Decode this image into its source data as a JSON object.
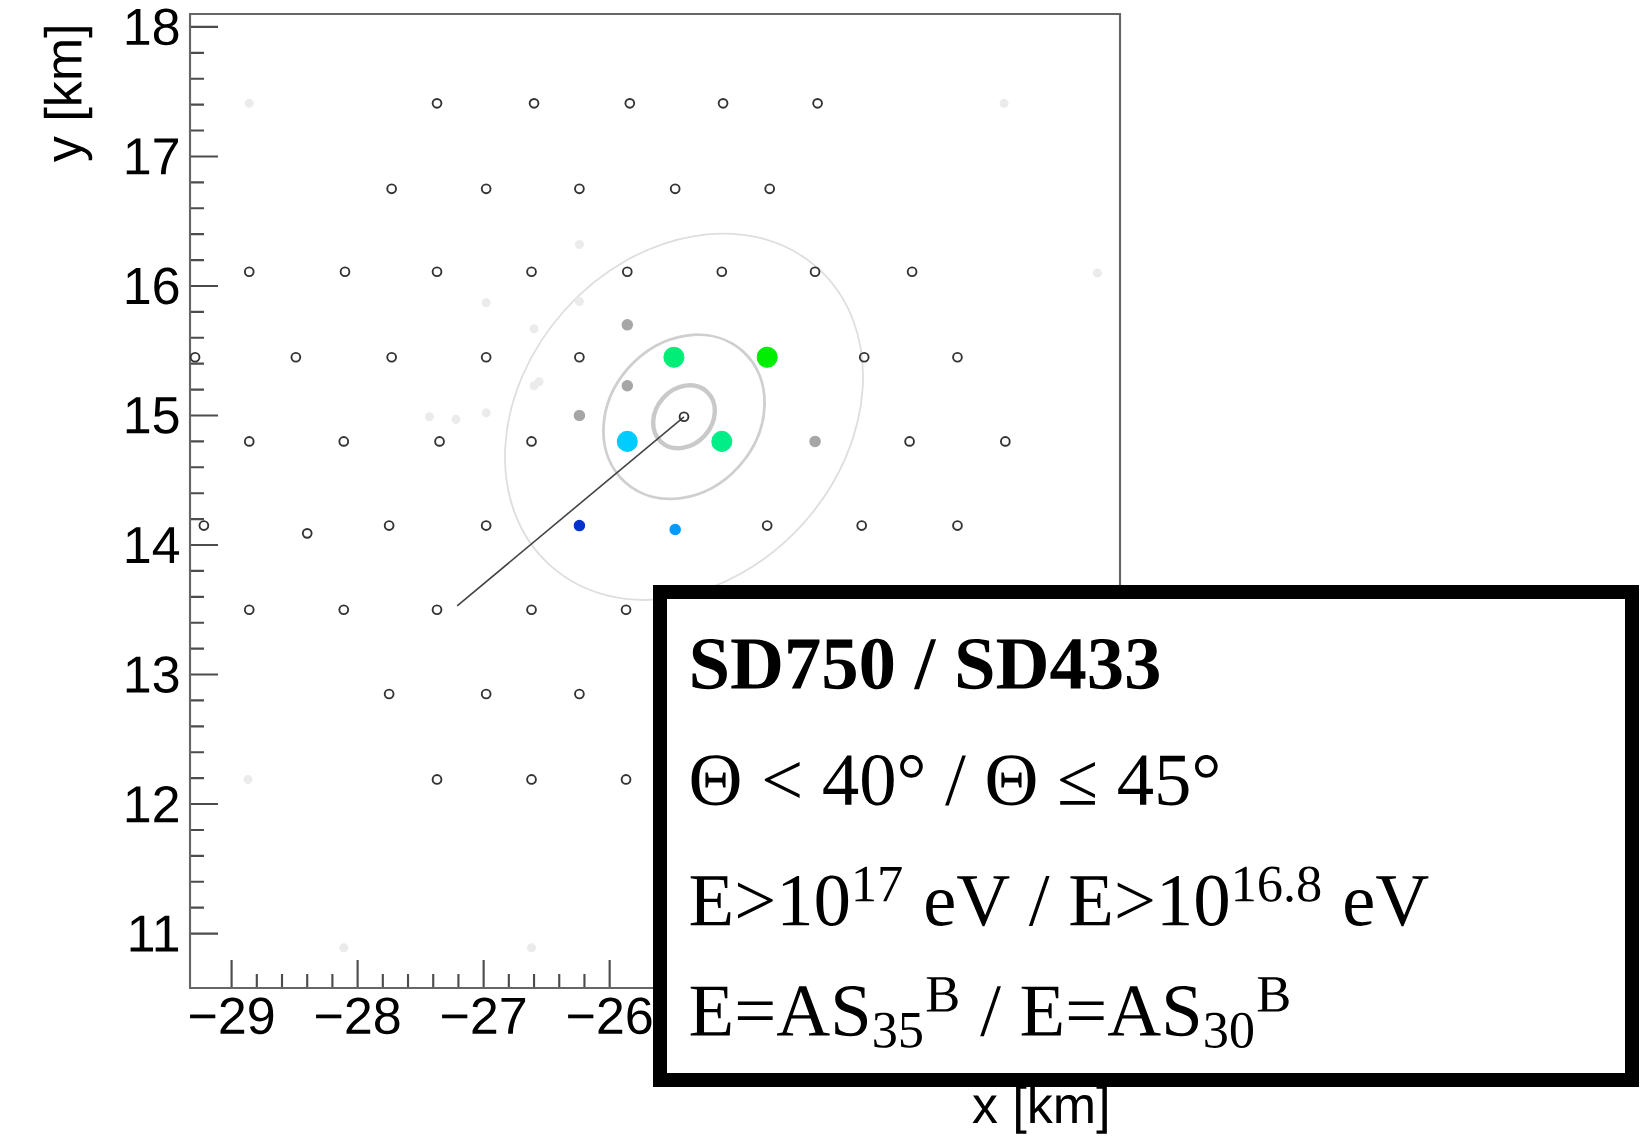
{
  "chart_data": {
    "type": "scatter",
    "xlabel": "x [km]",
    "ylabel": "y [km]",
    "xlim": [
      -29.33,
      -21.95
    ],
    "ylim": [
      10.58,
      18.1
    ],
    "xticks": [
      {
        "value": -29,
        "label": "−29"
      },
      {
        "value": -28,
        "label": "−28"
      },
      {
        "value": -27,
        "label": "−27"
      },
      {
        "value": -26,
        "label": "−26"
      }
    ],
    "yticks": [
      11,
      12,
      13,
      14,
      15,
      16,
      17,
      18
    ],
    "marker": "circle",
    "series": [
      {
        "color": "#333333",
        "x": [
          -27.37,
          -26.6,
          -25.84,
          -25.1,
          -24.35,
          -27.73,
          -26.98,
          -26.24,
          -25.48,
          -24.73,
          -28.86,
          -28.1,
          -27.37,
          -26.62,
          -25.86,
          -25.11,
          -24.37,
          -23.6,
          -29.29,
          -28.49,
          -27.73,
          -26.98,
          -26.24,
          -23.98,
          -23.24,
          -28.86,
          -28.11,
          -27.35,
          -26.62,
          -23.62,
          -22.86,
          -25.41,
          -29.22,
          -28.4,
          -27.75,
          -26.98,
          -24.75,
          -24.0,
          -23.24,
          -28.86,
          -28.11,
          -27.37,
          -26.62,
          -25.87,
          -27.75,
          -26.98,
          -26.24,
          -27.37,
          -26.62,
          -25.87
        ],
        "values": [
          17.41,
          17.41,
          17.41,
          17.41,
          17.41,
          16.75,
          16.75,
          16.75,
          16.75,
          16.75,
          16.11,
          16.11,
          16.11,
          16.11,
          16.11,
          16.11,
          16.11,
          16.11,
          15.45,
          15.45,
          15.45,
          15.45,
          15.45,
          15.45,
          15.45,
          14.8,
          14.8,
          14.8,
          14.8,
          14.8,
          14.8,
          14.99,
          14.15,
          14.09,
          14.15,
          14.15,
          14.15,
          14.15,
          14.15,
          13.5,
          13.5,
          13.5,
          13.5,
          13.5,
          12.85,
          12.85,
          12.85,
          12.19,
          12.19,
          12.19
        ]
      },
      {
        "color": "#ebebeb",
        "x": [
          -28.86,
          -22.87,
          -22.13,
          -28.87,
          -28.11,
          -26.62,
          -26.24,
          -26.98,
          -26.24,
          -26.6,
          -26.56,
          -26.6,
          -27.43,
          -27.22,
          -26.98
        ],
        "values": [
          17.41,
          17.41,
          16.1,
          12.19,
          10.89,
          10.89,
          16.32,
          15.87,
          15.88,
          15.67,
          15.26,
          15.23,
          14.99,
          14.97,
          15.02
        ]
      },
      {
        "color": "#a6a6a6",
        "x": [
          -25.86,
          -25.86,
          -26.24,
          -24.37
        ],
        "values": [
          15.7,
          15.23,
          15.0,
          14.8
        ]
      },
      {
        "colors": [
          "#00ee77",
          "#00ee00",
          "#00ccff",
          "#00ee88"
        ],
        "x": [
          -25.49,
          -24.75,
          -25.86,
          -25.11
        ],
        "values": [
          15.45,
          15.45,
          14.8,
          14.8
        ]
      },
      {
        "colors": [
          "#0033cc",
          "#0099ff"
        ],
        "x": [
          -26.24,
          -25.48
        ],
        "values": [
          14.15,
          14.12
        ]
      },
      {
        "type": "line",
        "color": "#444444",
        "x": [
          -27.21,
          -25.41
        ],
        "values": [
          13.53,
          14.99
        ]
      }
    ],
    "annotations": [
      "**SD750 / SD433**",
      "Θ < 40° / Θ ≤ 45°",
      "E>10$^{17}$ eV / E>10$^{16.8}$ eV",
      "E=AS$_{35}$$^{B}$ / E=AS$_{30}$$^{B}$"
    ]
  }
}
